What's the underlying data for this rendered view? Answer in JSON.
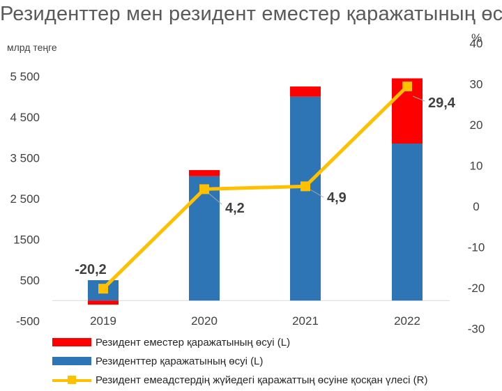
{
  "title": "Резиденттер мен резидент еместер қаражатының өсуі",
  "left_unit": "млрд теңге",
  "right_unit": "%",
  "colors": {
    "red": "#ff0000",
    "blue": "#2e75b6",
    "yellow": "#ffc000",
    "axis_text": "#404040",
    "baseline": "#d9d9d9"
  },
  "legend": [
    {
      "label": "Резидент еместер қаражатының өсуі (L)",
      "swatch": "rect",
      "color": "#ff0000"
    },
    {
      "label": "Резиденттер қаражатының өсуі (L)",
      "swatch": "rect",
      "color": "#2e75b6"
    },
    {
      "label": "Резидент емеадстердің жүйедегі қаражаттың өсуіне қосқан үлесі (R)",
      "swatch": "line",
      "color": "#ffc000"
    }
  ],
  "chart_data": {
    "type": "bar",
    "categories": [
      "2019",
      "2020",
      "2021",
      "2022"
    ],
    "series": [
      {
        "name": "Резиденттер қаражатының өсуі (L)",
        "axis": "left",
        "kind": "stacked-bar",
        "color": "#2e75b6",
        "values": [
          500,
          3050,
          5000,
          3850
        ]
      },
      {
        "name": "Резидент еместер қаражатының өсуі (L)",
        "axis": "left",
        "kind": "stacked-bar",
        "color": "#ff0000",
        "values": [
          -100,
          150,
          250,
          1600
        ]
      },
      {
        "name": "Резидент емеадстердің жүйедегі қаражаттың өсуіне қосқан үлесі (R)",
        "axis": "right",
        "kind": "line",
        "color": "#ffc000",
        "values": [
          -20.2,
          4.2,
          4.9,
          29.4
        ],
        "labels": [
          "-20,2",
          "4,2",
          "4,9",
          "29,4"
        ]
      }
    ],
    "left_axis": {
      "ticks": [
        -500,
        500,
        1500,
        2500,
        3500,
        4500,
        5500
      ],
      "tick_labels": [
        "-500",
        "500",
        "1500",
        "2 500",
        "3 500",
        "4 500",
        "5 500"
      ],
      "range": [
        -500,
        6000
      ]
    },
    "right_axis": {
      "ticks": [
        -30,
        -20,
        -10,
        0,
        10,
        20,
        30,
        40
      ],
      "tick_labels": [
        "-30",
        "-20",
        "-10",
        "0",
        "10",
        "20",
        "30",
        "40"
      ],
      "range": [
        -30,
        40
      ]
    },
    "grid": false,
    "legend_position": "bottom-left"
  }
}
